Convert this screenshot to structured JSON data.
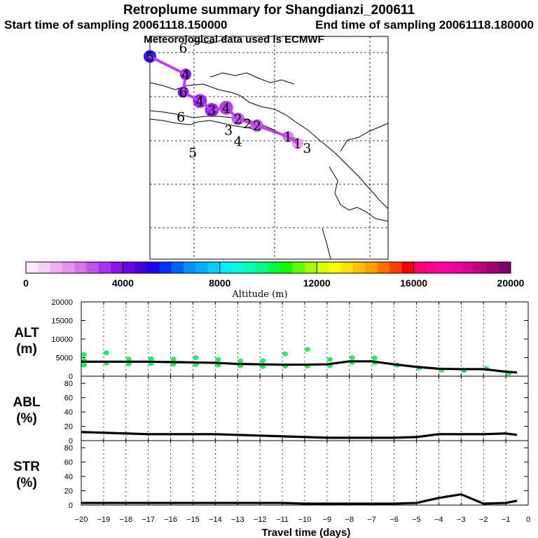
{
  "header": {
    "title": "Retroplume summary for Shangdianzi_200611",
    "start_sampling": "Start time of sampling 20061118.150000",
    "end_sampling": "End time of sampling 20061118.180000",
    "met_data": "Meteorological data used is ECMWF"
  },
  "colors": {
    "track": "#c040f0",
    "green_points": "#22ee66",
    "colorbar": [
      "#ffe8ff",
      "#f8d0f8",
      "#f0b0f0",
      "#e890f0",
      "#d870f0",
      "#c050f0",
      "#a830f0",
      "#9010f0",
      "#7000e8",
      "#4000e0",
      "#2000f0",
      "#0030ff",
      "#0060ff",
      "#0090ff",
      "#00b0ff",
      "#00d0ff",
      "#00f0ff",
      "#00ffe0",
      "#00ffb0",
      "#00ff80",
      "#00ff40",
      "#10ff00",
      "#60ff00",
      "#a0ff00",
      "#d8ff00",
      "#ffff00",
      "#ffe000",
      "#ffc000",
      "#ffa000",
      "#ff7000",
      "#ff4000",
      "#ff0000",
      "#ff0070",
      "#ff0090",
      "#ff00a8",
      "#f000a0",
      "#d80090",
      "#c00080",
      "#a00070",
      "#800068"
    ]
  },
  "map": {
    "trajectory_points": [
      {
        "label": "5",
        "lon": 0.0,
        "lat": 0.91,
        "alt": 5000,
        "r": 9
      },
      {
        "label": "4",
        "lon": 0.15,
        "lat": 0.83,
        "alt": 4000,
        "r": 8
      },
      {
        "label": "6",
        "lon": 0.14,
        "lat": 0.75,
        "alt": 4000,
        "r": 8
      },
      {
        "label": "4",
        "lon": 0.21,
        "lat": 0.71,
        "alt": 3500,
        "r": 10
      },
      {
        "label": "3",
        "lon": 0.26,
        "lat": 0.67,
        "alt": 3500,
        "r": 10
      },
      {
        "label": "4",
        "lon": 0.32,
        "lat": 0.68,
        "alt": 3000,
        "r": 10
      },
      {
        "label": "2",
        "lon": 0.37,
        "lat": 0.63,
        "alt": 2500,
        "r": 9
      },
      {
        "label": "2",
        "lon": 0.45,
        "lat": 0.6,
        "alt": 2500,
        "r": 9
      },
      {
        "label": "1",
        "lon": 0.58,
        "lat": 0.55,
        "alt": 2000,
        "r": 8
      },
      {
        "label": "1",
        "lon": 0.62,
        "lat": 0.52,
        "alt": 1500,
        "r": 8
      }
    ],
    "stray_labels": [
      {
        "label": "6",
        "lon": 0.14,
        "lat": 0.95
      },
      {
        "label": "6",
        "lon": 0.13,
        "lat": 0.64
      },
      {
        "label": "3",
        "lon": 0.33,
        "lat": 0.58
      },
      {
        "label": "4",
        "lon": 0.37,
        "lat": 0.53
      },
      {
        "label": "5",
        "lon": 0.18,
        "lat": 0.48
      },
      {
        "label": "3",
        "lon": 0.66,
        "lat": 0.5
      },
      {
        "label": "2",
        "lon": 0.41,
        "lat": 0.61
      }
    ]
  },
  "colorbar": {
    "ticks": [
      "0",
      "4000",
      "8000",
      "12000",
      "16000",
      "20000"
    ],
    "label": "Altitude (m)"
  },
  "chart_data": [
    {
      "type": "line",
      "name": "ALT",
      "ylabel": "ALT",
      "yunit": "(m)",
      "ylim": [
        0,
        20000
      ],
      "yticks": [
        "0",
        "5000",
        "10000",
        "15000",
        "20000"
      ],
      "x": [
        -20,
        -19,
        -18,
        -17,
        -16,
        -15,
        -14,
        -13,
        -12,
        -11,
        -10,
        -9,
        -8,
        -7,
        -6,
        -5,
        -4,
        -3,
        -2,
        -1,
        -0.5
      ],
      "values": [
        3900,
        3900,
        3900,
        3900,
        3800,
        3700,
        3600,
        3300,
        3200,
        3100,
        3100,
        3200,
        4000,
        4000,
        3200,
        2500,
        2000,
        1900,
        1900,
        1200,
        1000
      ],
      "scatter": [
        {
          "x": -20,
          "y": 3000
        },
        {
          "x": -20,
          "y": 4200
        },
        {
          "x": -20,
          "y": 5800
        },
        {
          "x": -19,
          "y": 3500
        },
        {
          "x": -19,
          "y": 6300
        },
        {
          "x": -18,
          "y": 3300
        },
        {
          "x": -18,
          "y": 4600
        },
        {
          "x": -17,
          "y": 3400
        },
        {
          "x": -17,
          "y": 4700
        },
        {
          "x": -16,
          "y": 3200
        },
        {
          "x": -16,
          "y": 4600
        },
        {
          "x": -15,
          "y": 3100
        },
        {
          "x": -15,
          "y": 5000
        },
        {
          "x": -14,
          "y": 3000
        },
        {
          "x": -14,
          "y": 4500
        },
        {
          "x": -13,
          "y": 2800
        },
        {
          "x": -13,
          "y": 4100
        },
        {
          "x": -12,
          "y": 2600
        },
        {
          "x": -12,
          "y": 4200
        },
        {
          "x": -11,
          "y": 2700
        },
        {
          "x": -11,
          "y": 6000
        },
        {
          "x": -10,
          "y": 2700
        },
        {
          "x": -10,
          "y": 7200
        },
        {
          "x": -9,
          "y": 2800
        },
        {
          "x": -9,
          "y": 4500
        },
        {
          "x": -8,
          "y": 3700
        },
        {
          "x": -8,
          "y": 5000
        },
        {
          "x": -7,
          "y": 3600
        },
        {
          "x": -7,
          "y": 4900
        },
        {
          "x": -6,
          "y": 3000
        },
        {
          "x": -5,
          "y": 2200
        },
        {
          "x": -4,
          "y": 1600
        },
        {
          "x": -3,
          "y": 1500
        },
        {
          "x": -2,
          "y": 2000
        },
        {
          "x": -1,
          "y": 800
        }
      ]
    },
    {
      "type": "line",
      "name": "ABL",
      "ylabel": "ABL",
      "yunit": "(%)",
      "ylim": [
        0,
        90
      ],
      "yticks": [
        "0",
        "20",
        "40",
        "60",
        "80"
      ],
      "x": [
        -20,
        -19,
        -18,
        -17,
        -16,
        -15,
        -14,
        -13,
        -12,
        -11,
        -10,
        -9,
        -8,
        -7,
        -6,
        -5,
        -4,
        -3,
        -2,
        -1,
        -0.5
      ],
      "values": [
        12,
        11,
        10,
        9,
        9,
        9,
        9,
        8,
        7,
        6,
        5,
        4,
        4,
        4,
        4,
        5,
        9,
        9,
        9,
        10,
        8
      ]
    },
    {
      "type": "line",
      "name": "STR",
      "ylabel": "STR",
      "yunit": "(%)",
      "ylim": [
        0,
        90
      ],
      "yticks": [
        "0",
        "20",
        "40",
        "60",
        "80"
      ],
      "x": [
        -20,
        -19,
        -18,
        -17,
        -16,
        -15,
        -14,
        -13,
        -12,
        -11,
        -10,
        -9,
        -8,
        -7,
        -6,
        -5,
        -4,
        -3,
        -2,
        -1,
        -0.5
      ],
      "values": [
        3,
        3,
        3,
        3,
        3,
        3,
        3,
        3,
        3,
        3,
        2,
        2,
        2,
        2,
        2,
        3,
        10,
        15,
        2,
        3,
        6
      ]
    }
  ],
  "xaxis": {
    "label": "Travel time (days)",
    "ticks": [
      "−20",
      "−19",
      "−18",
      "−17",
      "−16",
      "−15",
      "−14",
      "−13",
      "−12",
      "−11",
      "−10",
      "−9",
      "−8",
      "−7",
      "−6",
      "−5",
      "−4",
      "−3",
      "−2",
      "−1",
      "0"
    ]
  }
}
